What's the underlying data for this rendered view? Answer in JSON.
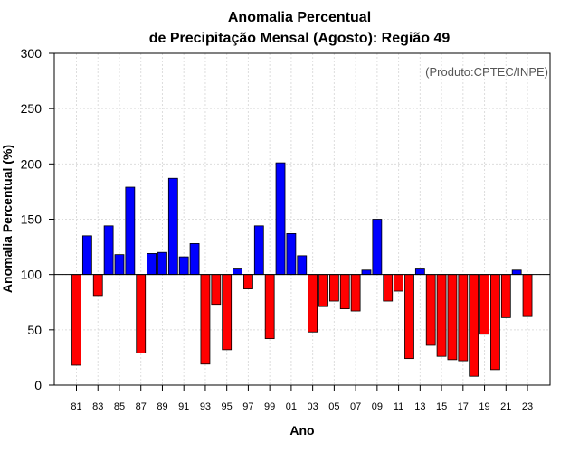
{
  "chart_data": {
    "type": "bar",
    "title_line1": "Anomalia Percentual",
    "title_line2": "de Precipitação Mensal (Agosto): Região 49",
    "xlabel": "Ano",
    "ylabel": "Anomalia Percentual (%)",
    "credit": "(Produto:CPTEC/INPE)",
    "ylim": [
      0,
      300
    ],
    "yticks": [
      0,
      50,
      100,
      150,
      200,
      250,
      300
    ],
    "baseline": 100,
    "grid": true,
    "colors": {
      "above": "#0000ff",
      "below": "#ff0000",
      "edge": "#000000"
    },
    "categories": [
      "81",
      "82",
      "83",
      "84",
      "85",
      "86",
      "87",
      "88",
      "89",
      "90",
      "91",
      "92",
      "93",
      "94",
      "95",
      "96",
      "97",
      "98",
      "99",
      "00",
      "01",
      "02",
      "03",
      "04",
      "05",
      "06",
      "07",
      "08",
      "09",
      "10",
      "11",
      "12",
      "13",
      "14",
      "15",
      "16",
      "17",
      "18",
      "19",
      "20",
      "21",
      "22",
      "23"
    ],
    "xtick_labels": [
      "81",
      "83",
      "85",
      "87",
      "89",
      "91",
      "93",
      "95",
      "97",
      "99",
      "01",
      "03",
      "05",
      "07",
      "09",
      "11",
      "13",
      "15",
      "17",
      "19",
      "21",
      "23"
    ],
    "values": [
      18,
      135,
      81,
      144,
      118,
      179,
      29,
      119,
      120,
      187,
      116,
      128,
      19,
      73,
      32,
      105,
      87,
      144,
      42,
      201,
      137,
      117,
      48,
      71,
      76,
      69,
      67,
      104,
      150,
      76,
      85,
      24,
      105,
      36,
      26,
      23,
      22,
      8,
      46,
      14,
      61,
      104,
      62
    ]
  }
}
